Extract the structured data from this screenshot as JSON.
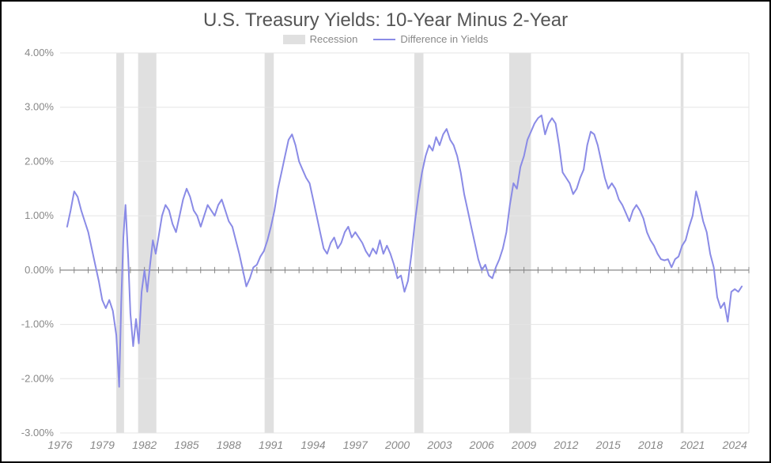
{
  "chart": {
    "type": "line",
    "title": "U.S. Treasury Yields: 10-Year Minus 2-Year",
    "title_fontsize": 24,
    "title_color": "#555555",
    "background_color": "#ffffff",
    "border_color": "#000000",
    "grid_color": "#e5e5e5",
    "axis_color": "#888888",
    "label_color": "#888888",
    "legend": {
      "items": [
        {
          "key": "recession",
          "label": "Recession",
          "color": "#e0e0e0",
          "type": "band"
        },
        {
          "key": "yield_diff",
          "label": "Difference in Yields",
          "color": "#8a8be6",
          "type": "line"
        }
      ],
      "fontsize": 13
    },
    "x": {
      "min": 1976,
      "max": 2025,
      "ticks": [
        1976,
        1979,
        1982,
        1985,
        1988,
        1991,
        1994,
        1997,
        2000,
        2003,
        2006,
        2009,
        2012,
        2015,
        2018,
        2021,
        2024
      ],
      "minor_step": 1,
      "label_fontsize": 14,
      "label_style": "italic"
    },
    "y": {
      "min": -3.0,
      "max": 4.0,
      "ticks": [
        -3.0,
        -2.0,
        -1.0,
        0.0,
        1.0,
        2.0,
        3.0,
        4.0
      ],
      "tick_labels": [
        "-3.00%",
        "-2.00%",
        "-1.00%",
        "0.00%",
        "1.00%",
        "2.00%",
        "3.00%",
        "4.00%"
      ],
      "label_fontsize": 13
    },
    "recession_bands": [
      {
        "start": 1980.0,
        "end": 1980.55
      },
      {
        "start": 1981.55,
        "end": 1982.85
      },
      {
        "start": 1990.55,
        "end": 1991.2
      },
      {
        "start": 2001.2,
        "end": 2001.85
      },
      {
        "start": 2007.95,
        "end": 2009.5
      },
      {
        "start": 2020.15,
        "end": 2020.35
      }
    ],
    "recession_color": "#e0e0e0",
    "series": {
      "color": "#8a8be6",
      "line_width": 2,
      "points": [
        [
          1976.5,
          0.8
        ],
        [
          1976.75,
          1.1
        ],
        [
          1977.0,
          1.45
        ],
        [
          1977.25,
          1.35
        ],
        [
          1977.5,
          1.1
        ],
        [
          1977.75,
          0.9
        ],
        [
          1978.0,
          0.7
        ],
        [
          1978.25,
          0.4
        ],
        [
          1978.5,
          0.1
        ],
        [
          1978.75,
          -0.2
        ],
        [
          1979.0,
          -0.55
        ],
        [
          1979.25,
          -0.7
        ],
        [
          1979.5,
          -0.55
        ],
        [
          1979.75,
          -0.75
        ],
        [
          1980.0,
          -1.2
        ],
        [
          1980.2,
          -2.15
        ],
        [
          1980.35,
          -0.6
        ],
        [
          1980.5,
          0.6
        ],
        [
          1980.65,
          1.2
        ],
        [
          1980.85,
          0.2
        ],
        [
          1981.0,
          -0.8
        ],
        [
          1981.2,
          -1.4
        ],
        [
          1981.4,
          -0.9
        ],
        [
          1981.6,
          -1.35
        ],
        [
          1981.8,
          -0.4
        ],
        [
          1982.0,
          0.0
        ],
        [
          1982.2,
          -0.4
        ],
        [
          1982.4,
          0.1
        ],
        [
          1982.6,
          0.55
        ],
        [
          1982.8,
          0.3
        ],
        [
          1983.0,
          0.6
        ],
        [
          1983.25,
          1.0
        ],
        [
          1983.5,
          1.2
        ],
        [
          1983.75,
          1.1
        ],
        [
          1984.0,
          0.85
        ],
        [
          1984.25,
          0.7
        ],
        [
          1984.5,
          1.0
        ],
        [
          1984.75,
          1.3
        ],
        [
          1985.0,
          1.5
        ],
        [
          1985.25,
          1.35
        ],
        [
          1985.5,
          1.1
        ],
        [
          1985.75,
          1.0
        ],
        [
          1986.0,
          0.8
        ],
        [
          1986.25,
          1.0
        ],
        [
          1986.5,
          1.2
        ],
        [
          1986.75,
          1.1
        ],
        [
          1987.0,
          1.0
        ],
        [
          1987.25,
          1.2
        ],
        [
          1987.5,
          1.3
        ],
        [
          1987.75,
          1.1
        ],
        [
          1988.0,
          0.9
        ],
        [
          1988.25,
          0.8
        ],
        [
          1988.5,
          0.55
        ],
        [
          1988.75,
          0.3
        ],
        [
          1989.0,
          0.0
        ],
        [
          1989.25,
          -0.3
        ],
        [
          1989.5,
          -0.15
        ],
        [
          1989.75,
          0.05
        ],
        [
          1990.0,
          0.1
        ],
        [
          1990.25,
          0.25
        ],
        [
          1990.5,
          0.35
        ],
        [
          1990.75,
          0.55
        ],
        [
          1991.0,
          0.8
        ],
        [
          1991.25,
          1.1
        ],
        [
          1991.5,
          1.5
        ],
        [
          1991.75,
          1.8
        ],
        [
          1992.0,
          2.1
        ],
        [
          1992.25,
          2.4
        ],
        [
          1992.5,
          2.5
        ],
        [
          1992.75,
          2.3
        ],
        [
          1993.0,
          2.0
        ],
        [
          1993.25,
          1.85
        ],
        [
          1993.5,
          1.7
        ],
        [
          1993.75,
          1.6
        ],
        [
          1994.0,
          1.3
        ],
        [
          1994.25,
          1.0
        ],
        [
          1994.5,
          0.7
        ],
        [
          1994.75,
          0.4
        ],
        [
          1995.0,
          0.3
        ],
        [
          1995.25,
          0.5
        ],
        [
          1995.5,
          0.6
        ],
        [
          1995.75,
          0.4
        ],
        [
          1996.0,
          0.5
        ],
        [
          1996.25,
          0.7
        ],
        [
          1996.5,
          0.8
        ],
        [
          1996.75,
          0.6
        ],
        [
          1997.0,
          0.7
        ],
        [
          1997.25,
          0.6
        ],
        [
          1997.5,
          0.5
        ],
        [
          1997.75,
          0.35
        ],
        [
          1998.0,
          0.25
        ],
        [
          1998.25,
          0.4
        ],
        [
          1998.5,
          0.3
        ],
        [
          1998.75,
          0.55
        ],
        [
          1999.0,
          0.3
        ],
        [
          1999.25,
          0.45
        ],
        [
          1999.5,
          0.3
        ],
        [
          1999.75,
          0.1
        ],
        [
          2000.0,
          -0.15
        ],
        [
          2000.25,
          -0.1
        ],
        [
          2000.5,
          -0.4
        ],
        [
          2000.75,
          -0.2
        ],
        [
          2001.0,
          0.3
        ],
        [
          2001.25,
          0.9
        ],
        [
          2001.5,
          1.4
        ],
        [
          2001.75,
          1.8
        ],
        [
          2002.0,
          2.1
        ],
        [
          2002.25,
          2.3
        ],
        [
          2002.5,
          2.2
        ],
        [
          2002.75,
          2.45
        ],
        [
          2003.0,
          2.3
        ],
        [
          2003.25,
          2.5
        ],
        [
          2003.5,
          2.6
        ],
        [
          2003.75,
          2.4
        ],
        [
          2004.0,
          2.3
        ],
        [
          2004.25,
          2.1
        ],
        [
          2004.5,
          1.8
        ],
        [
          2004.75,
          1.4
        ],
        [
          2005.0,
          1.1
        ],
        [
          2005.25,
          0.8
        ],
        [
          2005.5,
          0.5
        ],
        [
          2005.75,
          0.2
        ],
        [
          2006.0,
          0.0
        ],
        [
          2006.25,
          0.1
        ],
        [
          2006.5,
          -0.1
        ],
        [
          2006.75,
          -0.15
        ],
        [
          2007.0,
          0.05
        ],
        [
          2007.25,
          0.2
        ],
        [
          2007.5,
          0.4
        ],
        [
          2007.75,
          0.7
        ],
        [
          2008.0,
          1.2
        ],
        [
          2008.25,
          1.6
        ],
        [
          2008.5,
          1.5
        ],
        [
          2008.75,
          1.9
        ],
        [
          2009.0,
          2.1
        ],
        [
          2009.25,
          2.4
        ],
        [
          2009.5,
          2.55
        ],
        [
          2009.75,
          2.7
        ],
        [
          2010.0,
          2.8
        ],
        [
          2010.25,
          2.85
        ],
        [
          2010.5,
          2.5
        ],
        [
          2010.75,
          2.7
        ],
        [
          2011.0,
          2.8
        ],
        [
          2011.25,
          2.7
        ],
        [
          2011.5,
          2.3
        ],
        [
          2011.75,
          1.8
        ],
        [
          2012.0,
          1.7
        ],
        [
          2012.25,
          1.6
        ],
        [
          2012.5,
          1.4
        ],
        [
          2012.75,
          1.5
        ],
        [
          2013.0,
          1.7
        ],
        [
          2013.25,
          1.85
        ],
        [
          2013.5,
          2.3
        ],
        [
          2013.75,
          2.55
        ],
        [
          2014.0,
          2.5
        ],
        [
          2014.25,
          2.3
        ],
        [
          2014.5,
          2.0
        ],
        [
          2014.75,
          1.7
        ],
        [
          2015.0,
          1.5
        ],
        [
          2015.25,
          1.6
        ],
        [
          2015.5,
          1.5
        ],
        [
          2015.75,
          1.3
        ],
        [
          2016.0,
          1.2
        ],
        [
          2016.25,
          1.05
        ],
        [
          2016.5,
          0.9
        ],
        [
          2016.75,
          1.1
        ],
        [
          2017.0,
          1.2
        ],
        [
          2017.25,
          1.1
        ],
        [
          2017.5,
          0.95
        ],
        [
          2017.75,
          0.7
        ],
        [
          2018.0,
          0.55
        ],
        [
          2018.25,
          0.45
        ],
        [
          2018.5,
          0.3
        ],
        [
          2018.75,
          0.2
        ],
        [
          2019.0,
          0.18
        ],
        [
          2019.25,
          0.2
        ],
        [
          2019.5,
          0.05
        ],
        [
          2019.75,
          0.2
        ],
        [
          2020.0,
          0.25
        ],
        [
          2020.25,
          0.45
        ],
        [
          2020.5,
          0.55
        ],
        [
          2020.75,
          0.8
        ],
        [
          2021.0,
          1.0
        ],
        [
          2021.25,
          1.45
        ],
        [
          2021.5,
          1.2
        ],
        [
          2021.75,
          0.9
        ],
        [
          2022.0,
          0.7
        ],
        [
          2022.25,
          0.3
        ],
        [
          2022.5,
          0.05
        ],
        [
          2022.75,
          -0.5
        ],
        [
          2023.0,
          -0.7
        ],
        [
          2023.25,
          -0.6
        ],
        [
          2023.5,
          -0.95
        ],
        [
          2023.75,
          -0.4
        ],
        [
          2024.0,
          -0.35
        ],
        [
          2024.25,
          -0.4
        ],
        [
          2024.5,
          -0.3
        ]
      ]
    }
  }
}
